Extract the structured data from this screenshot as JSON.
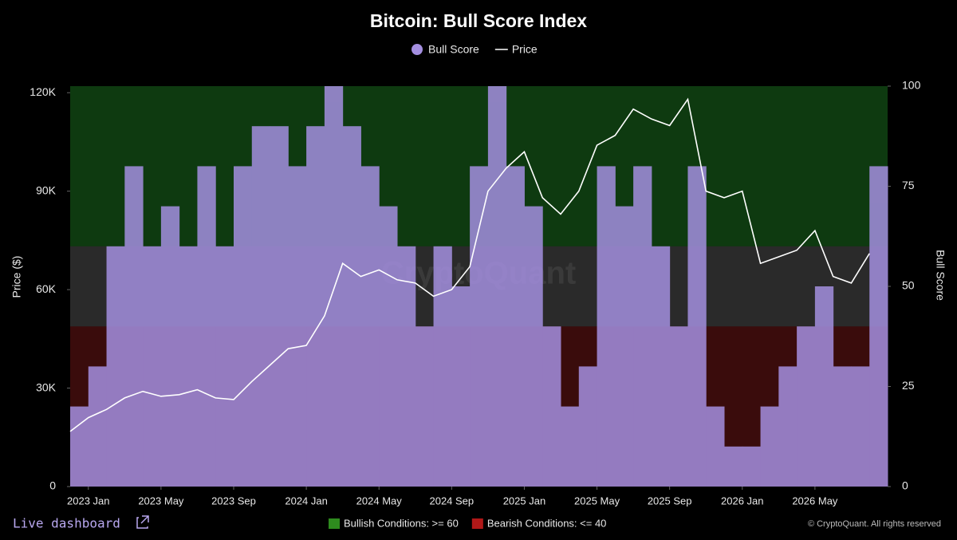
{
  "chart_data": {
    "type": "dual-axis-step-line",
    "title": "Bitcoin: Bull Score Index",
    "ylabel": "Price ($)",
    "y2label": "Bull Score",
    "watermark": "CryptoQuant",
    "link": "Live dashboard",
    "credit": "© CryptoQuant. All rights reserved",
    "x": [
      "2022-12",
      "2023-01",
      "2023-02",
      "2023-03",
      "2023-04",
      "2023-05",
      "2023-06",
      "2023-07",
      "2023-08",
      "2023-09",
      "2023-10",
      "2023-11",
      "2023-12",
      "2024-01",
      "2024-02",
      "2024-03",
      "2024-04",
      "2024-05",
      "2024-06",
      "2024-07",
      "2024-08",
      "2024-09",
      "2024-10",
      "2024-11",
      "2024-12",
      "2025-01",
      "2025-02",
      "2025-03",
      "2025-04",
      "2025-05",
      "2025-06",
      "2025-07",
      "2025-08",
      "2025-09",
      "2025-10",
      "2025-11",
      "2025-12",
      "2026-01",
      "2026-02",
      "2026-03",
      "2026-04",
      "2026-05",
      "2026-06",
      "2026-07",
      "2026-08"
    ],
    "xlim": [
      "2022-12",
      "2026-08"
    ],
    "xticks": [
      {
        "value": "2023-01",
        "label": "2023 Jan"
      },
      {
        "value": "2023-05",
        "label": "2023 May"
      },
      {
        "value": "2023-09",
        "label": "2023 Sep"
      },
      {
        "value": "2024-01",
        "label": "2024 Jan"
      },
      {
        "value": "2024-05",
        "label": "2024 May"
      },
      {
        "value": "2024-09",
        "label": "2024 Sep"
      },
      {
        "value": "2025-01",
        "label": "2025 Jan"
      },
      {
        "value": "2025-05",
        "label": "2025 May"
      },
      {
        "value": "2025-09",
        "label": "2025 Sep"
      },
      {
        "value": "2026-01",
        "label": "2026 Jan"
      },
      {
        "value": "2026-05",
        "label": "2026 May"
      }
    ],
    "ylim": [
      0,
      122000
    ],
    "yticks": [
      0,
      {
        "value": 30000,
        "label": "30K"
      },
      {
        "value": 60000,
        "label": "60K"
      },
      {
        "value": 90000,
        "label": "90K"
      },
      {
        "value": 120000,
        "label": "120K"
      }
    ],
    "y2lim": [
      0,
      100
    ],
    "y2ticks": [
      0,
      25,
      50,
      75,
      100
    ],
    "series": [
      {
        "name": "Bull Score",
        "color": "#a48fe0",
        "axis": "y2",
        "style": "step-area",
        "values": [
          20,
          30,
          60,
          80,
          60,
          70,
          60,
          80,
          60,
          80,
          90,
          90,
          80,
          90,
          100,
          90,
          80,
          70,
          60,
          40,
          60,
          50,
          80,
          100,
          80,
          70,
          40,
          20,
          30,
          80,
          70,
          80,
          60,
          40,
          80,
          20,
          10,
          10,
          20,
          30,
          40,
          50,
          30,
          30,
          80
        ]
      },
      {
        "name": "Price",
        "color": "#ffffff",
        "axis": "y",
        "style": "line",
        "values": [
          16800,
          21000,
          23500,
          27000,
          29000,
          27500,
          28000,
          29500,
          27000,
          26500,
          32000,
          37000,
          42000,
          43000,
          52000,
          68000,
          64000,
          66000,
          63000,
          62000,
          58000,
          60000,
          67000,
          90000,
          97000,
          102000,
          88000,
          83000,
          90000,
          104000,
          107000,
          115000,
          112000,
          110000,
          118000,
          90000,
          88000,
          90000,
          68000,
          70000,
          72000,
          78000,
          64000,
          62000,
          71000
        ]
      }
    ],
    "zones": [
      {
        "label": "Bullish Conditions: >= 60",
        "threshold": 60,
        "side": "above",
        "color": "#0e3a10"
      },
      {
        "label": "Bearish Conditions: <= 40",
        "threshold": 40,
        "side": "below",
        "color": "#3a0c0c"
      }
    ],
    "legend_colors": [
      "#2e8b1e",
      "#b01818"
    ]
  }
}
